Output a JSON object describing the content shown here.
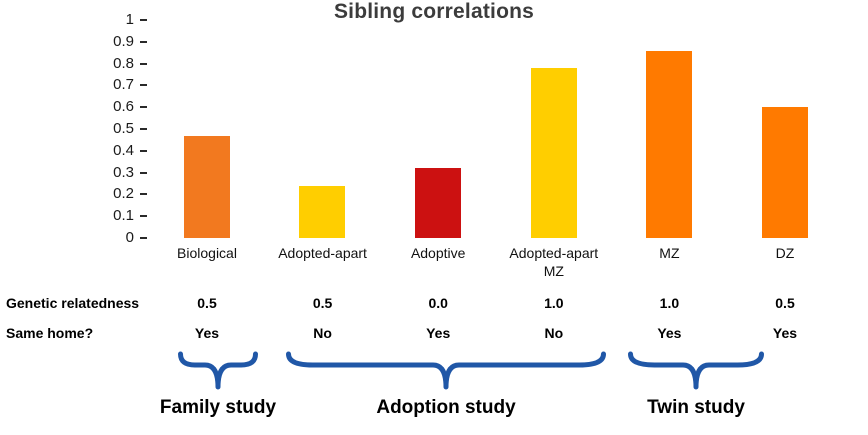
{
  "chart_data": {
    "type": "bar",
    "title": "Sibling correlations",
    "categories": [
      "Biological",
      "Adopted-apart",
      "Adoptive",
      "Adopted-apart\nMZ",
      "MZ",
      "DZ"
    ],
    "values": [
      0.47,
      0.24,
      0.32,
      0.78,
      0.86,
      0.6
    ],
    "bar_colors": [
      "#F2791F",
      "#FFCE00",
      "#CC1111",
      "#FFCE00",
      "#FF7A00",
      "#FF7A00"
    ],
    "ylim": [
      0,
      1
    ],
    "ytick_labels": [
      "1",
      "0.9",
      "0.8",
      "0.7",
      "0.6",
      "0.5",
      "0.4",
      "0.3",
      "0.2",
      "0.1",
      "0"
    ],
    "grid": false,
    "legend": false
  },
  "table": {
    "rows": [
      {
        "label": "Genetic relatedness",
        "values": [
          "0.5",
          "0.5",
          "0.0",
          "1.0",
          "1.0",
          "0.5"
        ]
      },
      {
        "label": "Same home?",
        "values": [
          "Yes",
          "No",
          "Yes",
          "No",
          "Yes",
          "Yes"
        ]
      }
    ]
  },
  "groups": [
    {
      "label": "Family study"
    },
    {
      "label": "Adoption study"
    },
    {
      "label": "Twin study"
    }
  ],
  "colors": {
    "brace": "#2057A7",
    "title_text": "#3C3C3C",
    "axis_text": "#1A1A1A"
  }
}
